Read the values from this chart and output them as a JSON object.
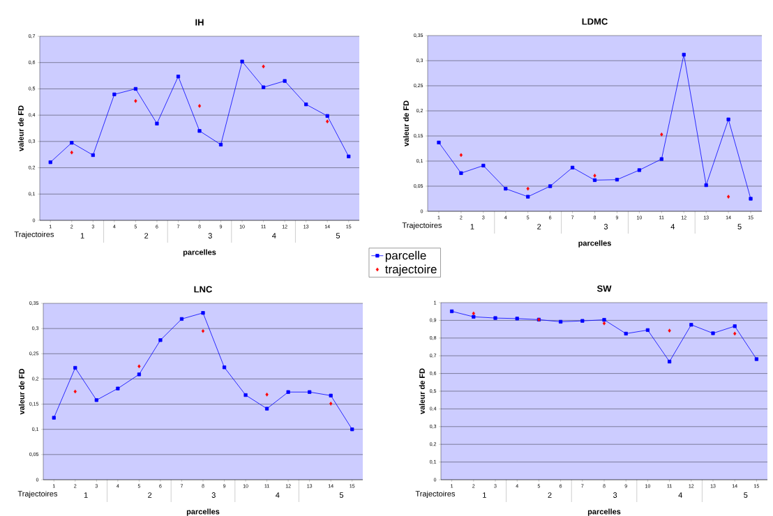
{
  "chart_data": [
    {
      "type": "line",
      "title": "IH",
      "xlabel": "parcelles",
      "ylabel": "valeur de FD",
      "categories": [
        "1",
        "2",
        "3",
        "4",
        "5",
        "6",
        "7",
        "8",
        "9",
        "10",
        "11",
        "12",
        "13",
        "14",
        "15"
      ],
      "annotations": [
        "Trajectoires",
        "1",
        "2",
        "3",
        "4",
        "5"
      ],
      "series": [
        {
          "name": "trajectoire",
          "type": "scatter",
          "marker": "diamond",
          "color": "#ff0000",
          "values": [
            null,
            0.258,
            null,
            null,
            0.454,
            null,
            null,
            0.435,
            null,
            null,
            0.585,
            null,
            null,
            0.376,
            null
          ]
        },
        {
          "name": "parcelle",
          "marker": "square",
          "color": "#0000ff",
          "values": [
            0.221,
            0.295,
            0.248,
            0.479,
            0.5,
            0.368,
            0.547,
            0.34,
            0.288,
            0.604,
            0.506,
            0.53,
            0.441,
            0.397,
            0.243
          ]
        }
      ],
      "ylim": [
        0,
        0.7
      ],
      "yticks": [
        0,
        {
          "value": 0.1,
          "label": "0,1"
        },
        {
          "value": 0.2,
          "label": "0,2"
        },
        {
          "value": 0.3,
          "label": "0,3"
        },
        {
          "value": 0.4,
          "label": "0,4"
        },
        {
          "value": 0.5,
          "label": "0,5"
        },
        {
          "value": 0.6,
          "label": "0,6"
        },
        {
          "value": 0.7,
          "label": "0,7"
        }
      ],
      "grid": "y",
      "legend": "bottom right"
    },
    {
      "type": "line",
      "title": "LDMC",
      "xlabel": "parcelles",
      "ylabel": "valeur de FD",
      "categories": [
        "1",
        "2",
        "3",
        "4",
        "5",
        "6",
        "7",
        "8",
        "9",
        "10",
        "11",
        "12",
        "13",
        "14",
        "15"
      ],
      "annotations": [
        "Trajectoires",
        "1",
        "2",
        "3",
        "4",
        "5"
      ],
      "series": [
        {
          "type": "scatter",
          "marker": "diamond",
          "color": "#ff0000",
          "values": [
            null,
            0.112,
            null,
            null,
            0.045,
            null,
            null,
            0.071,
            null,
            null,
            0.153,
            null,
            null,
            0.029,
            null
          ]
        },
        {
          "marker": "square",
          "color": "#0000ff",
          "values": [
            0.137,
            0.076,
            0.091,
            0.045,
            0.029,
            0.05,
            0.087,
            0.062,
            0.063,
            0.082,
            0.104,
            0.312,
            0.052,
            0.183,
            0.025
          ]
        }
      ],
      "ylim": [
        0,
        0.35
      ],
      "yticks": [
        0,
        {
          "value": 0.05,
          "label": "0,05"
        },
        {
          "value": 0.1,
          "label": "0,1"
        },
        {
          "value": 0.15,
          "label": "0,15"
        },
        {
          "value": 0.2,
          "label": "0,2"
        },
        {
          "value": 0.25,
          "label": "0,25"
        },
        {
          "value": 0.3,
          "label": "0,3"
        },
        {
          "value": 0.35,
          "label": "0,35"
        }
      ],
      "grid": "y"
    },
    {
      "type": "line",
      "title": "LNC",
      "xlabel": "parcelles",
      "ylabel": "valeur de FD",
      "categories": [
        "1",
        "2",
        "3",
        "4",
        "5",
        "6",
        "7",
        "8",
        "9",
        "10",
        "11",
        "12",
        "13",
        "14",
        "15"
      ],
      "annotations": [
        "Trajectoires",
        "1",
        "2",
        "3",
        "4",
        "5"
      ],
      "series": [
        {
          "type": "scatter",
          "marker": "diamond",
          "color": "#ff0000",
          "values": [
            null,
            0.175,
            null,
            null,
            0.225,
            null,
            null,
            0.295,
            null,
            null,
            0.169,
            null,
            null,
            0.151,
            null
          ]
        },
        {
          "marker": "square",
          "color": "#0000ff",
          "values": [
            0.123,
            0.222,
            0.158,
            0.181,
            0.209,
            0.277,
            0.319,
            0.331,
            0.223,
            0.168,
            0.141,
            0.174,
            0.174,
            0.167,
            0.1
          ]
        }
      ],
      "ylim": [
        0,
        0.35
      ],
      "yticks": [
        0,
        {
          "value": 0.05,
          "label": "0,05"
        },
        {
          "value": 0.1,
          "label": "0,1"
        },
        {
          "value": 0.15,
          "label": "0,15"
        },
        {
          "value": 0.2,
          "label": "0,2"
        },
        {
          "value": 0.25,
          "label": "0,25"
        },
        {
          "value": 0.3,
          "label": "0,3"
        },
        {
          "value": 0.35,
          "label": "0,35"
        }
      ],
      "grid": "y"
    },
    {
      "type": "line",
      "title": "SW",
      "xlabel": "parcelles",
      "ylabel": "valeur de FD",
      "categories": [
        "1",
        "2",
        "3",
        "4",
        "5",
        "6",
        "7",
        "8",
        "9",
        "10",
        "11",
        "12",
        "13",
        "14",
        "15"
      ],
      "annotations": [
        "Trajectoires",
        "1",
        "2",
        "3",
        "4",
        "5"
      ],
      "series": [
        {
          "type": "scatter",
          "marker": "diamond",
          "color": "#ff0000",
          "values": [
            null,
            0.939,
            null,
            null,
            0.904,
            null,
            null,
            0.883,
            null,
            null,
            0.842,
            null,
            null,
            0.825,
            null
          ]
        },
        {
          "marker": "square",
          "color": "#0000ff",
          "values": [
            0.951,
            0.92,
            0.913,
            0.91,
            0.904,
            0.892,
            0.897,
            0.903,
            0.825,
            0.845,
            0.667,
            0.875,
            0.827,
            0.867,
            0.681
          ]
        }
      ],
      "ylim": [
        0,
        1
      ],
      "yticks": [
        0,
        {
          "value": 0.1,
          "label": "0,1"
        },
        {
          "value": 0.2,
          "label": "0,2"
        },
        {
          "value": 0.3,
          "label": "0,3"
        },
        {
          "value": 0.4,
          "label": "0,4"
        },
        {
          "value": 0.5,
          "label": "0,5"
        },
        {
          "value": 0.6,
          "label": "0,6"
        },
        {
          "value": 0.7,
          "label": "0,7"
        },
        {
          "value": 0.8,
          "label": "0,8"
        },
        {
          "value": 0.9,
          "label": "0,9"
        },
        1
      ],
      "grid": "y"
    }
  ]
}
